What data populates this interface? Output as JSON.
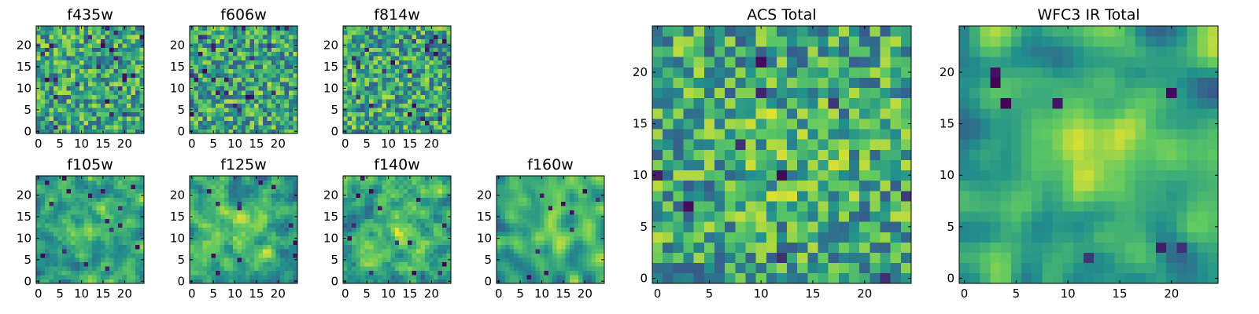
{
  "figure": {
    "colormap_stops": [
      "#440154",
      "#3b528b",
      "#21918c",
      "#5ec962",
      "#fde725"
    ]
  },
  "chart_data": [
    {
      "type": "heatmap",
      "title": "f435w",
      "grid_size": 25,
      "xticks": [
        "0",
        "5",
        "10",
        "15",
        "20"
      ],
      "yticks": [
        "0",
        "5",
        "10",
        "15",
        "20"
      ],
      "xlim": [
        0,
        25
      ],
      "ylim": [
        0,
        25
      ],
      "seed": 11,
      "smooth": 0,
      "center_boost": 0.0,
      "dark_spots": 24
    },
    {
      "type": "heatmap",
      "title": "f606w",
      "grid_size": 25,
      "xticks": [
        "0",
        "5",
        "10",
        "15",
        "20"
      ],
      "yticks": [
        "0",
        "5",
        "10",
        "15",
        "20"
      ],
      "xlim": [
        0,
        25
      ],
      "ylim": [
        0,
        25
      ],
      "seed": 23,
      "smooth": 0,
      "center_boost": 0.0,
      "dark_spots": 24
    },
    {
      "type": "heatmap",
      "title": "f814w",
      "grid_size": 25,
      "xticks": [
        "0",
        "5",
        "10",
        "15",
        "20"
      ],
      "yticks": [
        "0",
        "5",
        "10",
        "15",
        "20"
      ],
      "xlim": [
        0,
        25
      ],
      "ylim": [
        0,
        25
      ],
      "seed": 37,
      "smooth": 0,
      "center_boost": 0.0,
      "dark_spots": 24
    },
    {
      "type": "heatmap",
      "title": "f105w",
      "grid_size": 25,
      "xticks": [
        "0",
        "5",
        "10",
        "15",
        "20"
      ],
      "yticks": [
        "0",
        "5",
        "10",
        "15",
        "20"
      ],
      "xlim": [
        0,
        25
      ],
      "ylim": [
        0,
        25
      ],
      "seed": 41,
      "smooth": 1,
      "center_boost": 0.18,
      "dark_spots": 16
    },
    {
      "type": "heatmap",
      "title": "f125w",
      "grid_size": 25,
      "xticks": [
        "0",
        "5",
        "10",
        "15",
        "20"
      ],
      "yticks": [
        "0",
        "5",
        "10",
        "15",
        "20"
      ],
      "xlim": [
        0,
        25
      ],
      "ylim": [
        0,
        25
      ],
      "seed": 53,
      "smooth": 1,
      "center_boost": 0.18,
      "dark_spots": 12
    },
    {
      "type": "heatmap",
      "title": "f140w",
      "grid_size": 25,
      "xticks": [
        "0",
        "5",
        "10",
        "15",
        "20"
      ],
      "yticks": [
        "0",
        "5",
        "10",
        "15",
        "20"
      ],
      "xlim": [
        0,
        25
      ],
      "ylim": [
        0,
        25
      ],
      "seed": 67,
      "smooth": 1,
      "center_boost": 0.15,
      "dark_spots": 14
    },
    {
      "type": "heatmap",
      "title": "f160w",
      "grid_size": 25,
      "xticks": [
        "0",
        "5",
        "10",
        "15",
        "20"
      ],
      "yticks": [
        "0",
        "5",
        "10",
        "15",
        "20"
      ],
      "xlim": [
        0,
        25
      ],
      "ylim": [
        0,
        25
      ],
      "seed": 79,
      "smooth": 2,
      "center_boost": 0.22,
      "dark_spots": 10
    },
    {
      "type": "heatmap",
      "title": "ACS Total",
      "grid_size": 25,
      "xticks": [
        "0",
        "5",
        "10",
        "15",
        "20"
      ],
      "yticks": [
        "0",
        "5",
        "10",
        "15",
        "20"
      ],
      "xlim": [
        0,
        25
      ],
      "ylim": [
        0,
        25
      ],
      "seed": 97,
      "smooth": 0,
      "center_boost": 0.1,
      "dark_spots": 10
    },
    {
      "type": "heatmap",
      "title": "WFC3 IR Total",
      "grid_size": 25,
      "xticks": [
        "0",
        "5",
        "10",
        "15",
        "20"
      ],
      "yticks": [
        "0",
        "5",
        "10",
        "15",
        "20"
      ],
      "xlim": [
        0,
        25
      ],
      "ylim": [
        0,
        25
      ],
      "seed": 113,
      "smooth": 2,
      "center_boost": 0.28,
      "dark_spots": 8
    }
  ]
}
